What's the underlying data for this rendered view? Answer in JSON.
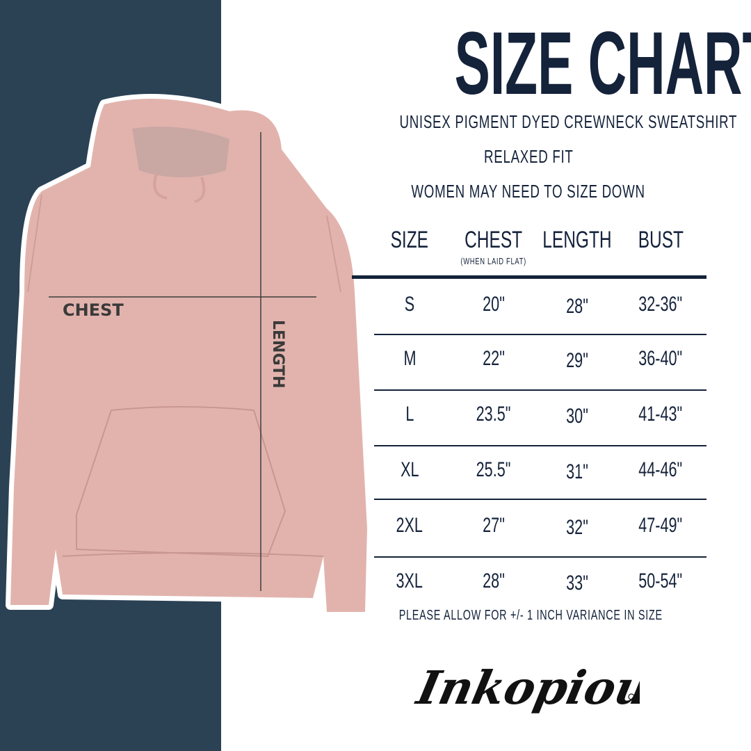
{
  "title": "SIZE CHART",
  "subtitles": [
    "UNISEX PIGMENT DYED CREWNECK SWEATSHIRT",
    "RELAXED FIT",
    "WOMEN MAY NEED TO SIZE DOWN"
  ],
  "table": {
    "headers": [
      "SIZE",
      "CHEST",
      "LENGTH",
      "BUST"
    ],
    "chest_note": "(WHEN LAID FLAT)",
    "rows": [
      [
        "S",
        "20\"",
        "28\"",
        "32-36\""
      ],
      [
        "M",
        "22\"",
        "29\"",
        "36-40\""
      ],
      [
        "L",
        "23.5\"",
        "30\"",
        "41-43\""
      ],
      [
        "XL",
        "25.5\"",
        "31\"",
        "44-46\""
      ],
      [
        "2XL",
        "27\"",
        "32\"",
        "47-49\""
      ],
      [
        "3XL",
        "28\"",
        "33\"",
        "50-54\""
      ]
    ]
  },
  "footnote": "PLEASE ALLOW FOR +/- 1 INCH VARIANCE IN SIZE",
  "diagram": {
    "chest_label": "CHEST",
    "length_label": "LENGTH"
  },
  "logo": {
    "text": "Inkopious"
  },
  "colors": {
    "navy": "#2b4154",
    "text": "#14223a",
    "hoodie": "#e2b3ad"
  }
}
